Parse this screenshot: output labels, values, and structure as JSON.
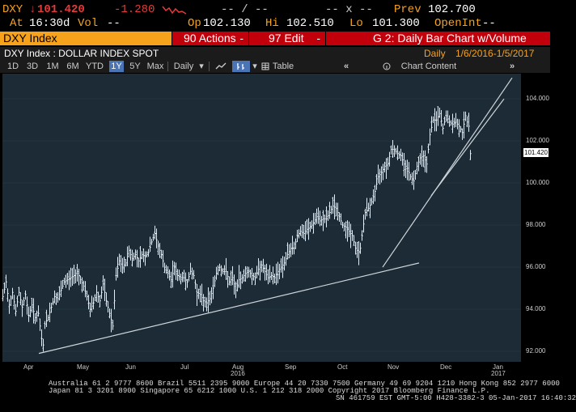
{
  "quote": {
    "ticker": "DXY",
    "arrow": "↓",
    "last": "101.420",
    "change": "-1.280",
    "sparkline_colors": {
      "line": "#e23b3b"
    },
    "dashes_mid": "-- / --",
    "x_mark": "-- x --",
    "prev_label": "Prev",
    "prev_value": "102.700",
    "at_label": "At",
    "time": "16:30d",
    "vol_label": "Vol",
    "vol_value": "--",
    "op_label": "Op",
    "op_value": "102.130",
    "hi_label": "Hi",
    "hi_value": "102.510",
    "lo_label": "Lo",
    "lo_value": "101.300",
    "openint_label": "OpenInt",
    "openint_value": "--"
  },
  "toolbar": {
    "security": "DXY Index",
    "actions_num": "90",
    "actions_label": "Actions",
    "edit_num": "97",
    "edit_label": "Edit",
    "graph_title": "G 2: Daily Bar Chart w/Volume"
  },
  "chart_header": {
    "title": "DXY Index : DOLLAR INDEX SPOT",
    "period_label": "Daily",
    "date_range": "1/6/2016-1/5/2017"
  },
  "periods": [
    "1D",
    "3D",
    "1M",
    "6M",
    "YTD",
    "1Y",
    "5Y",
    "Max"
  ],
  "active_period": "1Y",
  "frequency": "Daily",
  "table_label": "Table",
  "chart_content_label": "Chart Content",
  "colors": {
    "orange": "#f7a21b",
    "bar_bg": "#c2000b",
    "plot_bg": "#1d2b36",
    "price": "#ffffff",
    "trend": "#cfd6dc",
    "last_box": "#ffffff"
  },
  "chart_data": {
    "type": "bar",
    "title": "DXY Index : DOLLAR INDEX SPOT",
    "frequency": "Daily",
    "ylim": [
      91.5,
      105.2
    ],
    "yticks": [
      "104.000",
      "102.000",
      "100.000",
      "98.000",
      "96.000",
      "94.000",
      "92.000"
    ],
    "ytick_values": [
      104,
      102,
      100,
      98,
      96,
      94,
      92
    ],
    "xticks": [
      "Apr",
      "May",
      "Jun",
      "Jul",
      "Aug",
      "Sep",
      "Oct",
      "Nov",
      "Dec",
      "Jan"
    ],
    "xtick_years": {
      "Aug": "2016",
      "Jan": "2017"
    },
    "last_value_label": "101.420",
    "last_value": 101.42,
    "close_path": [
      [
        0,
        94.6
      ],
      [
        4,
        95.3
      ],
      [
        8,
        94.2
      ],
      [
        12,
        94.8
      ],
      [
        16,
        93.9
      ],
      [
        20,
        94.8
      ],
      [
        24,
        94.1
      ],
      [
        28,
        94.7
      ],
      [
        32,
        93.7
      ],
      [
        36,
        94.2
      ],
      [
        40,
        93.6
      ],
      [
        44,
        93.8
      ],
      [
        48,
        92.6
      ],
      [
        50,
        92.3
      ],
      [
        52,
        93.3
      ],
      [
        56,
        93.6
      ],
      [
        60,
        94.1
      ],
      [
        64,
        94.6
      ],
      [
        68,
        94.5
      ],
      [
        72,
        94.9
      ],
      [
        76,
        95.3
      ],
      [
        80,
        95.4
      ],
      [
        84,
        95.5
      ],
      [
        88,
        95.6
      ],
      [
        92,
        95.8
      ],
      [
        96,
        95.4
      ],
      [
        100,
        95.1
      ],
      [
        104,
        94.6
      ],
      [
        108,
        94.0
      ],
      [
        112,
        94.3
      ],
      [
        116,
        94.8
      ],
      [
        120,
        94.4
      ],
      [
        124,
        95.2
      ],
      [
        128,
        94.4
      ],
      [
        132,
        93.8
      ],
      [
        136,
        93.2
      ],
      [
        140,
        95.6
      ],
      [
        144,
        96.3
      ],
      [
        148,
        96.0
      ],
      [
        152,
        96.2
      ],
      [
        156,
        96.8
      ],
      [
        160,
        96.4
      ],
      [
        164,
        96.6
      ],
      [
        168,
        96.3
      ],
      [
        172,
        96.6
      ],
      [
        176,
        96.5
      ],
      [
        180,
        96.7
      ],
      [
        184,
        97.2
      ],
      [
        188,
        97.6
      ],
      [
        192,
        97.0
      ],
      [
        196,
        96.6
      ],
      [
        200,
        96.0
      ],
      [
        204,
        95.7
      ],
      [
        208,
        95.4
      ],
      [
        212,
        96.0
      ],
      [
        216,
        95.6
      ],
      [
        220,
        95.5
      ],
      [
        224,
        95.5
      ],
      [
        228,
        95.3
      ],
      [
        232,
        95.8
      ],
      [
        236,
        95.6
      ],
      [
        240,
        94.8
      ],
      [
        244,
        94.7
      ],
      [
        248,
        94.4
      ],
      [
        252,
        94.3
      ],
      [
        256,
        94.5
      ],
      [
        260,
        95.0
      ],
      [
        264,
        95.7
      ],
      [
        268,
        96.0
      ],
      [
        272,
        95.8
      ],
      [
        276,
        95.8
      ],
      [
        280,
        95.3
      ],
      [
        284,
        95.5
      ],
      [
        288,
        94.9
      ],
      [
        292,
        95.4
      ],
      [
        296,
        95.5
      ],
      [
        300,
        95.7
      ],
      [
        304,
        95.8
      ],
      [
        308,
        95.6
      ],
      [
        312,
        95.5
      ],
      [
        316,
        95.9
      ],
      [
        320,
        96.1
      ],
      [
        324,
        95.8
      ],
      [
        328,
        95.5
      ],
      [
        332,
        95.6
      ],
      [
        336,
        95.5
      ],
      [
        340,
        95.8
      ],
      [
        344,
        96.0
      ],
      [
        348,
        96.2
      ],
      [
        352,
        96.6
      ],
      [
        356,
        96.9
      ],
      [
        360,
        96.9
      ],
      [
        364,
        97.5
      ],
      [
        368,
        97.7
      ],
      [
        372,
        97.6
      ],
      [
        376,
        97.8
      ],
      [
        380,
        97.9
      ],
      [
        384,
        98.1
      ],
      [
        388,
        98.4
      ],
      [
        392,
        98.2
      ],
      [
        396,
        98.3
      ],
      [
        400,
        98.3
      ],
      [
        404,
        98.6
      ],
      [
        408,
        98.9
      ],
      [
        412,
        98.8
      ],
      [
        416,
        98.4
      ],
      [
        420,
        98.0
      ],
      [
        424,
        97.9
      ],
      [
        428,
        97.7
      ],
      [
        432,
        97.5
      ],
      [
        436,
        96.9
      ],
      [
        440,
        96.7
      ],
      [
        442,
        96.9
      ],
      [
        444,
        97.5
      ],
      [
        448,
        98.6
      ],
      [
        452,
        98.8
      ],
      [
        456,
        99.1
      ],
      [
        460,
        99.6
      ],
      [
        464,
        100.3
      ],
      [
        468,
        100.5
      ],
      [
        472,
        100.8
      ],
      [
        476,
        100.9
      ],
      [
        480,
        101.6
      ],
      [
        484,
        101.6
      ],
      [
        488,
        101.4
      ],
      [
        492,
        101.3
      ],
      [
        496,
        100.9
      ],
      [
        500,
        100.7
      ],
      [
        504,
        100.3
      ],
      [
        508,
        100.1
      ],
      [
        512,
        100.8
      ],
      [
        516,
        101.2
      ],
      [
        520,
        101.3
      ],
      [
        524,
        100.9
      ],
      [
        528,
        102.3
      ],
      [
        532,
        103.0
      ],
      [
        536,
        103.0
      ],
      [
        540,
        103.3
      ],
      [
        544,
        102.6
      ],
      [
        548,
        103.2
      ],
      [
        552,
        102.9
      ],
      [
        556,
        102.8
      ],
      [
        560,
        102.9
      ],
      [
        564,
        102.7
      ],
      [
        568,
        102.4
      ],
      [
        572,
        103.2
      ],
      [
        574,
        102.9
      ],
      [
        576,
        102.7
      ],
      [
        578,
        101.4
      ]
    ],
    "trendlines": [
      {
        "name": "lower-support",
        "from": [
          45,
          91.9
        ],
        "to": [
          515,
          96.2
        ]
      },
      {
        "name": "rising-steep",
        "from": [
          470,
          96.0
        ],
        "to": [
          630,
          105.0
        ]
      },
      {
        "name": "rising-channel",
        "from": [
          530,
          99.4
        ],
        "to": [
          620,
          104.0
        ]
      }
    ],
    "x_domain": [
      0,
      641
    ]
  },
  "footer": {
    "line1": "Australia 61 2 9777 8600 Brazil 5511 2395 9000 Europe 44 20 7330 7500 Germany 49 69 9204 1210 Hong Kong 852 2977 6000",
    "line2": "Japan 81 3 3201 8900          Singapore 65 6212 1000          U.S. 1 212 318 2000          Copyright 2017 Bloomberg Finance L.P.",
    "line3": "SN 461759 EST  GMT-5:00 H428-3382-3 05-Jan-2017 16:40:32"
  }
}
